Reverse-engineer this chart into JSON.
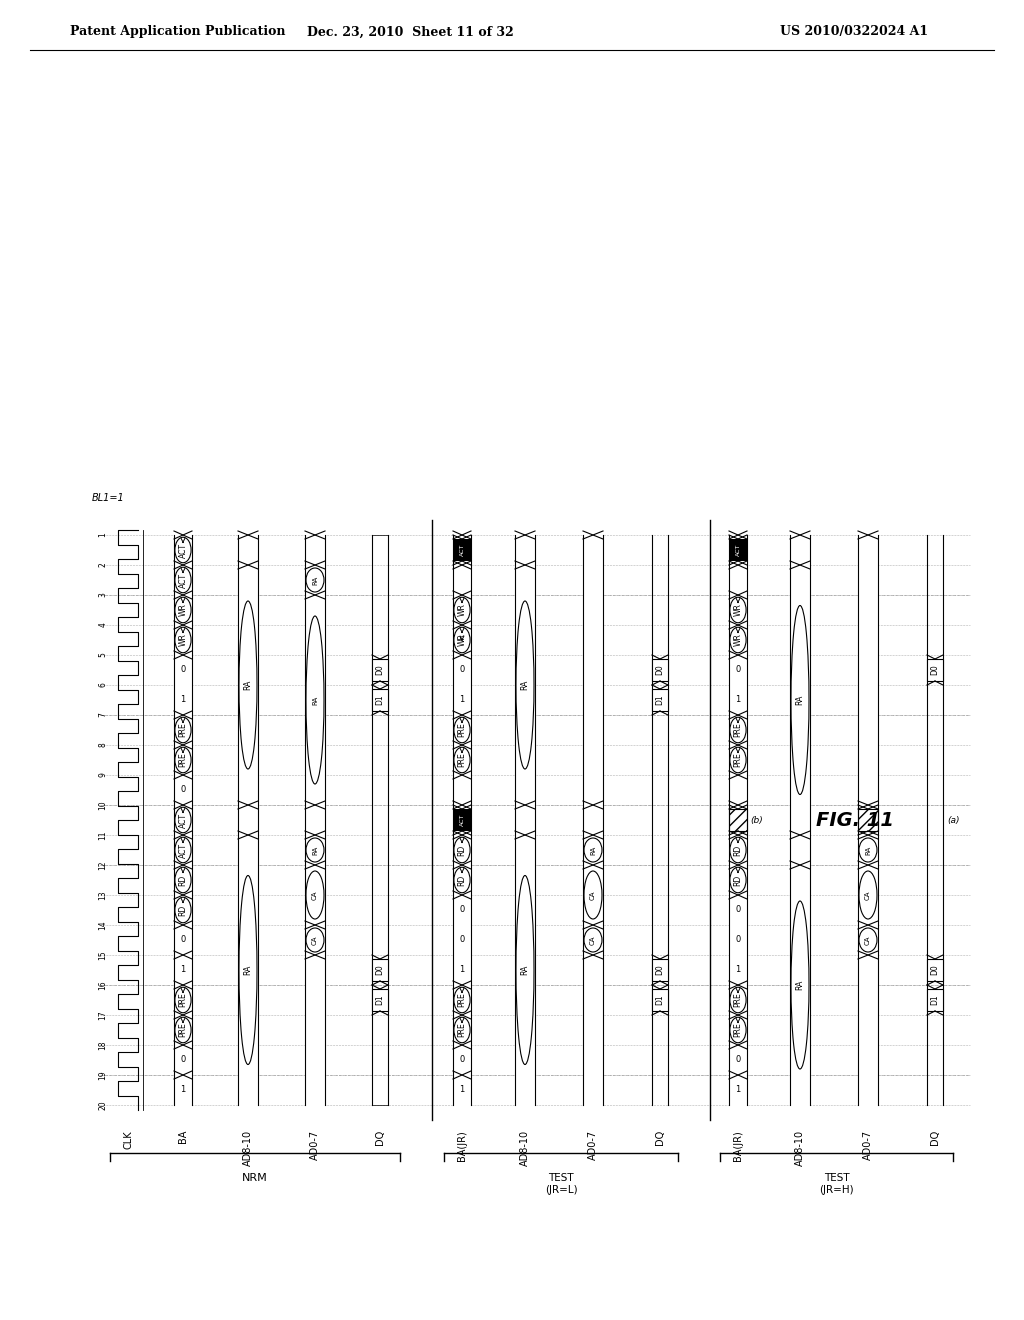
{
  "header_left": "Patent Application Publication",
  "header_center": "Dec. 23, 2010  Sheet 11 of 32",
  "header_right": "US 2010/0322024 A1",
  "fig_label": "FIG. 11",
  "bg_color": "#ffffff"
}
